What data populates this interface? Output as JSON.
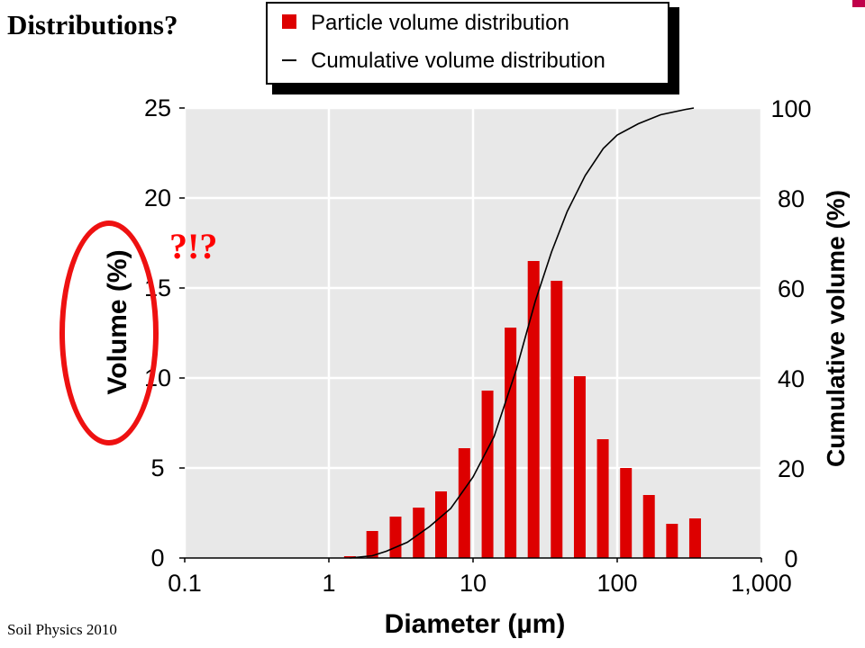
{
  "slide": {
    "title": "Distributions?",
    "footer": "Soil Physics 2010",
    "annotation": "?!?",
    "colors": {
      "annotation": "#ff0000",
      "bars": "#dd0000"
    }
  },
  "chart_data": {
    "type": "bar",
    "x_scale": "log",
    "xlim": [
      0.1,
      1000
    ],
    "ylim": [
      0,
      25
    ],
    "y2lim": [
      0,
      100
    ],
    "xlabel": "Diameter (µm)",
    "ylabel": "Volume (%)",
    "y2label": "Cumulative volume (%)",
    "x_ticks": [
      "0.1",
      "1",
      "10",
      "100",
      "1,000"
    ],
    "y_ticks": [
      "0",
      "5",
      "10",
      "15",
      "20",
      "25"
    ],
    "y2_ticks": [
      "0",
      "20",
      "40",
      "60",
      "80",
      "100"
    ],
    "grid": true,
    "legend_position": "top-right",
    "series": [
      {
        "name": "Particle volume distribution",
        "type": "bar",
        "color": "#dd0000",
        "x": [
          1.4,
          2.0,
          2.9,
          4.2,
          6.0,
          8.7,
          12.6,
          18.2,
          26.3,
          38.0,
          55.0,
          79.5,
          115,
          166,
          240,
          347
        ],
        "values": [
          0.1,
          1.5,
          2.3,
          2.8,
          3.7,
          6.1,
          9.3,
          12.8,
          16.5,
          15.4,
          10.1,
          6.6,
          5.0,
          3.5,
          1.9,
          2.2
        ]
      },
      {
        "name": "Cumulative volume distribution",
        "type": "line",
        "color": "#000000",
        "axis": "right",
        "x": [
          1.4,
          2.0,
          2.5,
          3.5,
          5.0,
          7.0,
          10.0,
          14.0,
          20.0,
          27.0,
          35.0,
          45.0,
          60.0,
          80.0,
          100.0,
          140.0,
          200.0,
          300.0,
          340.0
        ],
        "values": [
          0,
          0.5,
          1.5,
          3.5,
          7,
          11,
          18,
          27,
          42,
          57,
          68,
          77,
          85,
          91,
          94,
          96.5,
          98.5,
          99.7,
          100
        ]
      }
    ]
  }
}
